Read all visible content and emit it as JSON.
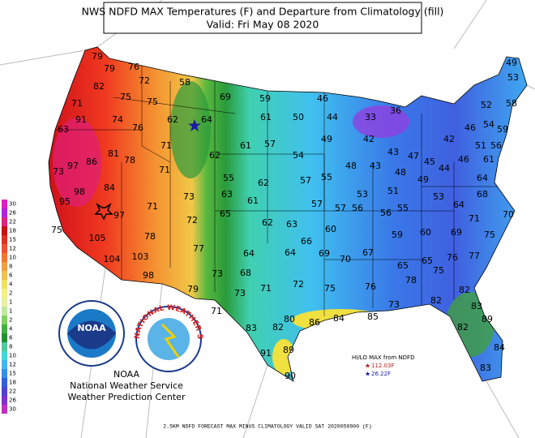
{
  "header": {
    "title": "NWS NDFD MAX Temperatures (F) and Departure from Climatology (fill)",
    "valid": "Valid: Fri May 08 2020"
  },
  "temperatures": [
    79,
    79,
    76,
    72,
    58,
    82,
    75,
    75,
    69,
    59,
    46,
    36,
    49,
    53,
    52,
    58,
    71,
    74,
    76,
    62,
    64,
    61,
    50,
    44,
    33,
    46,
    54,
    59,
    91,
    63,
    71,
    57,
    49,
    42,
    43,
    47,
    42,
    51,
    56,
    81,
    78,
    62,
    61,
    54,
    45,
    46,
    61,
    86,
    97,
    73,
    71,
    55,
    62,
    57,
    55,
    48,
    43,
    48,
    49,
    44,
    64,
    84,
    98,
    73,
    63,
    61,
    53,
    51,
    53,
    68,
    95,
    71,
    57,
    57,
    56,
    56,
    55,
    64,
    97,
    72,
    65,
    62,
    63,
    71,
    70,
    75,
    105,
    78,
    66,
    60,
    59,
    60,
    69,
    75,
    77,
    64,
    64,
    69,
    70,
    67,
    65,
    65,
    75,
    76,
    77,
    104,
    103,
    68,
    73,
    98,
    78,
    71,
    72,
    75,
    76,
    79,
    73,
    82,
    82,
    73,
    71,
    83,
    89,
    80,
    86,
    84,
    85,
    82,
    82,
    83,
    84,
    91,
    89,
    83,
    90
  ],
  "legend": {
    "warm": [
      30,
      26,
      22,
      18,
      15,
      12,
      10,
      8,
      6,
      4,
      2,
      1
    ],
    "cool": [
      1,
      2,
      4,
      6,
      8,
      10,
      12,
      15,
      18,
      22,
      26,
      30
    ]
  },
  "extremes": {
    "title": "HI/LO MAX from NDFD",
    "high": "112.03F",
    "low": "26.22F"
  },
  "logos": {
    "noaa": "NOAA",
    "nws": "NATIONAL WEATHER SERVICE"
  },
  "agency": [
    "NOAA",
    "National Weather Service",
    "Weather Prediction Center"
  ],
  "footer": "2.5KM NDFD FORECAST MAX MINUS CLIMATOLOGY VALID SAT 2020050900 (F)"
}
